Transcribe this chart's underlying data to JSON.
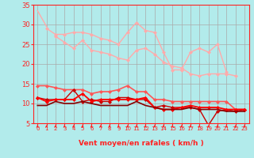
{
  "xlabel": "Vent moyen/en rafales ( km/h )",
  "background_color": "#b2ebeb",
  "grid_color": "#aaaaaa",
  "x": [
    0,
    1,
    2,
    3,
    4,
    5,
    6,
    7,
    8,
    9,
    10,
    11,
    12,
    13,
    14,
    15,
    16,
    17,
    18,
    19,
    20,
    21,
    22,
    23
  ],
  "ylim": [
    5,
    35
  ],
  "xlim": [
    -0.5,
    23.5
  ],
  "yticks": [
    5,
    10,
    15,
    20,
    25,
    30,
    35
  ],
  "lines": [
    {
      "y": [
        33.5,
        29.5,
        null,
        null,
        null,
        null,
        null,
        null,
        null,
        null,
        null,
        null,
        null,
        null,
        null,
        null,
        null,
        null,
        null,
        null,
        null,
        null
      ],
      "color": "#ffaaaa",
      "lw": 1.0,
      "marker": null,
      "x_start": 0
    },
    {
      "y": [
        29.0,
        27.5,
        27.5,
        28.0,
        28.0,
        27.5,
        26.5,
        26.0,
        25.0,
        28.0,
        30.5,
        28.5,
        28.0,
        23.0,
        18.5,
        18.5,
        23.0,
        24.0,
        23.0,
        25.0,
        18.0
      ],
      "color": "#ffaaaa",
      "lw": 1.0,
      "marker": "D",
      "marker_size": 2,
      "x_start": 1
    },
    {
      "y": [
        27.0,
        25.5,
        24.0,
        26.0,
        23.5,
        23.0,
        22.5,
        21.5,
        21.0,
        23.5,
        24.0,
        22.5,
        20.5,
        19.5,
        19.0,
        17.5,
        17.0,
        17.5,
        17.5,
        17.5,
        17.0
      ],
      "color": "#ffaaaa",
      "lw": 1.0,
      "marker": "D",
      "marker_size": 2,
      "x_start": 2
    },
    {
      "y": [
        14.5,
        14.5,
        14.0,
        13.5,
        13.5,
        13.5,
        12.5,
        13.0,
        13.0,
        13.5,
        14.5,
        13.0,
        13.0,
        11.0,
        11.0,
        10.5,
        10.5,
        10.5,
        10.5,
        10.5,
        10.5,
        10.5,
        8.5,
        8.5
      ],
      "color": "#ff5555",
      "lw": 1.2,
      "marker": "D",
      "marker_size": 2,
      "x_start": 0
    },
    {
      "y": [
        11.5,
        11.0,
        11.0,
        11.0,
        13.5,
        10.5,
        11.0,
        10.5,
        10.5,
        11.5,
        11.5,
        11.0,
        11.0,
        9.0,
        9.5,
        9.0,
        9.0,
        9.0,
        8.5,
        4.5,
        8.0,
        8.5,
        8.0,
        8.5
      ],
      "color": "#cc0000",
      "lw": 1.0,
      "marker": "D",
      "marker_size": 2,
      "x_start": 0
    },
    {
      "y": [
        11.5,
        10.5,
        11.0,
        11.0,
        11.0,
        12.5,
        10.5,
        11.0,
        11.0,
        11.0,
        11.0,
        11.0,
        11.5,
        9.0,
        8.5,
        8.5,
        9.0,
        9.5,
        9.0,
        9.0,
        9.0,
        8.5,
        8.5,
        8.5
      ],
      "color": "#ff0000",
      "lw": 1.3,
      "marker": "D",
      "marker_size": 2,
      "x_start": 0
    },
    {
      "y": [
        9.5,
        9.5,
        10.5,
        10.0,
        10.0,
        10.5,
        10.0,
        9.5,
        9.5,
        9.5,
        9.5,
        10.5,
        9.5,
        9.0,
        8.5,
        8.5,
        8.5,
        9.0,
        8.5,
        8.5,
        8.5,
        8.0,
        8.0,
        8.0
      ],
      "color": "#880000",
      "lw": 1.2,
      "marker": null,
      "x_start": 0
    }
  ],
  "arrow_color": "#ff2222",
  "tick_label_color": "#ff2222",
  "axis_label_color": "#ff2222"
}
